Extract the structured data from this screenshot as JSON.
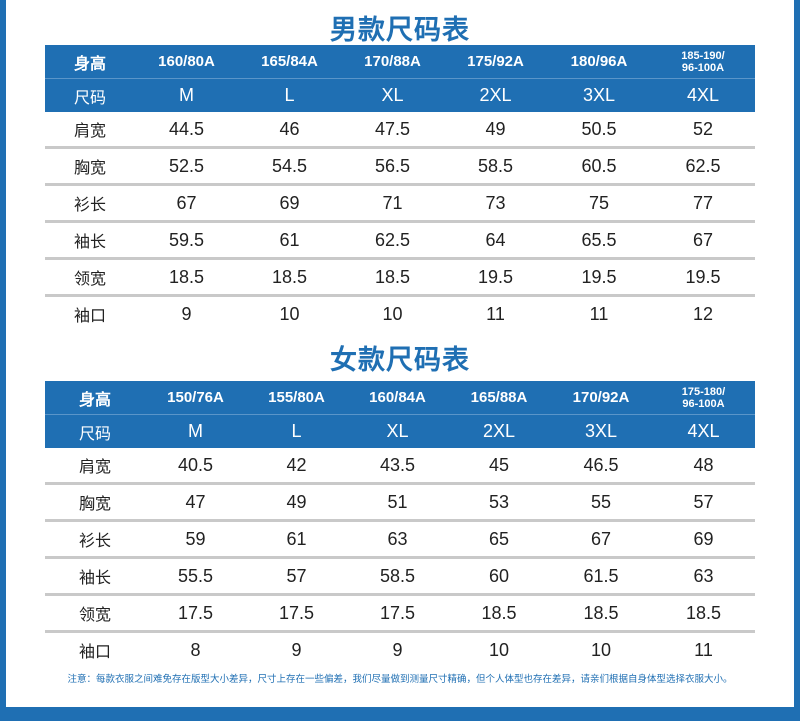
{
  "men": {
    "title": "男款尺码表",
    "height_label": "身高",
    "size_label": "尺码",
    "heights": [
      "160/80A",
      "165/84A",
      "170/88A",
      "175/92A",
      "180/96A",
      "185-190/",
      "96-100A"
    ],
    "sizes": [
      "M",
      "L",
      "XL",
      "2XL",
      "3XL",
      "4XL"
    ],
    "rows": [
      {
        "label": "肩宽",
        "values": [
          "44.5",
          "46",
          "47.5",
          "49",
          "50.5",
          "52"
        ]
      },
      {
        "label": "胸宽",
        "values": [
          "52.5",
          "54.5",
          "56.5",
          "58.5",
          "60.5",
          "62.5"
        ]
      },
      {
        "label": "衫长",
        "values": [
          "67",
          "69",
          "71",
          "73",
          "75",
          "77"
        ]
      },
      {
        "label": "袖长",
        "values": [
          "59.5",
          "61",
          "62.5",
          "64",
          "65.5",
          "67"
        ]
      },
      {
        "label": "领宽",
        "values": [
          "18.5",
          "18.5",
          "18.5",
          "19.5",
          "19.5",
          "19.5"
        ]
      },
      {
        "label": "袖口",
        "values": [
          "9",
          "10",
          "10",
          "11",
          "11",
          "12"
        ]
      }
    ]
  },
  "women": {
    "title": "女款尺码表",
    "height_label": "身高",
    "size_label": "尺码",
    "heights": [
      "150/76A",
      "155/80A",
      "160/84A",
      "165/88A",
      "170/92A",
      "175-180/",
      "96-100A"
    ],
    "sizes": [
      "M",
      "L",
      "XL",
      "2XL",
      "3XL",
      "4XL"
    ],
    "rows": [
      {
        "label": "肩宽",
        "values": [
          "40.5",
          "42",
          "43.5",
          "45",
          "46.5",
          "48"
        ]
      },
      {
        "label": "胸宽",
        "values": [
          "47",
          "49",
          "51",
          "53",
          "55",
          "57"
        ]
      },
      {
        "label": "衫长",
        "values": [
          "59",
          "61",
          "63",
          "65",
          "67",
          "69"
        ]
      },
      {
        "label": "袖长",
        "values": [
          "55.5",
          "57",
          "58.5",
          "60",
          "61.5",
          "63"
        ]
      },
      {
        "label": "领宽",
        "values": [
          "17.5",
          "17.5",
          "17.5",
          "18.5",
          "18.5",
          "18.5"
        ]
      },
      {
        "label": "袖口",
        "values": [
          "8",
          "9",
          "9",
          "10",
          "10",
          "11"
        ]
      }
    ]
  },
  "note": "注意：每款衣服之间难免存在版型大小差异，尺寸上存在一些偏差，我们尽量做到测量尺寸精确，但个人体型也存在差异，请亲们根据自身体型选择衣服大小。",
  "colors": {
    "accent": "#1f6fb3",
    "divider": "#c9c9c9"
  }
}
